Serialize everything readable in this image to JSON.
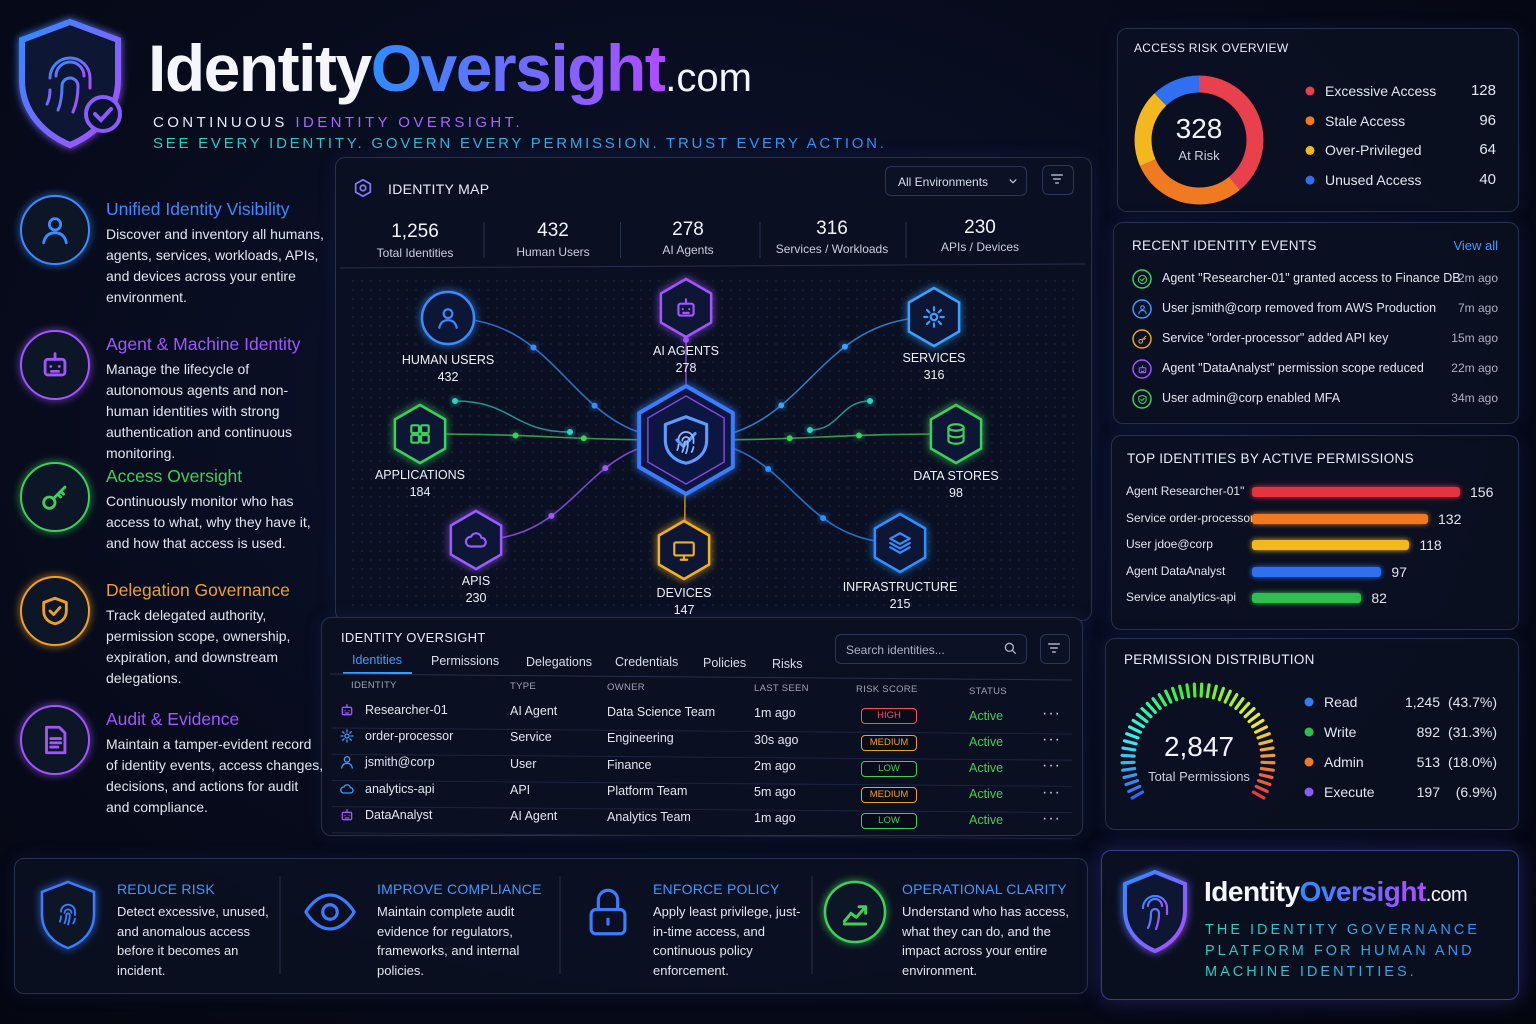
{
  "header": {
    "brand_identity": "Identity",
    "brand_oversight": "Oversight",
    "brand_domain": ".com",
    "tagline_prefix": "CONTINUOUS",
    "tagline_highlight": "IDENTITY OVERSIGHT.",
    "tagline_2": "SEE EVERY IDENTITY. GOVERN EVERY PERMISSION. TRUST EVERY ACTION."
  },
  "features": [
    {
      "title": "Unified Identity Visibility",
      "text": "Discover and inventory all humans, agents, services, workloads, APIs, and devices across your entire environment."
    },
    {
      "title": "Agent & Machine Identity",
      "text": "Manage the lifecycle of autonomous agents and non-human identities with strong authentication and continuous monitoring."
    },
    {
      "title": "Access Oversight",
      "text": "Continuously monitor who has access to what, why they have it, and how that access is used."
    },
    {
      "title": "Delegation Governance",
      "text": "Track delegated authority, permission scope, ownership, expiration, and downstream delegations."
    },
    {
      "title": "Audit & Evidence",
      "text": "Maintain a tamper-evident record of identity events, access changes, decisions, and actions for audit and compliance."
    }
  ],
  "identity_map": {
    "title": "IDENTITY MAP",
    "filter": "All Environments",
    "stats": [
      {
        "value": "1,256",
        "label": "Total Identities"
      },
      {
        "value": "432",
        "label": "Human Users"
      },
      {
        "value": "278",
        "label": "AI Agents"
      },
      {
        "value": "316",
        "label": "Services / Workloads"
      },
      {
        "value": "230",
        "label": "APIs / Devices"
      }
    ],
    "nodes": [
      {
        "label": "HUMAN USERS",
        "count": "432"
      },
      {
        "label": "AI AGENTS",
        "count": "278"
      },
      {
        "label": "SERVICES",
        "count": "316"
      },
      {
        "label": "APPLICATIONS",
        "count": "184"
      },
      {
        "label": "DATA STORES",
        "count": "98"
      },
      {
        "label": "APIS",
        "count": "230"
      },
      {
        "label": "DEVICES",
        "count": "147"
      },
      {
        "label": "INFRASTRUCTURE",
        "count": "215"
      }
    ]
  },
  "identity_table": {
    "title": "IDENTITY OVERSIGHT",
    "tabs": [
      "Identities",
      "Permissions",
      "Delegations",
      "Credentials",
      "Policies",
      "Risks"
    ],
    "search_placeholder": "Search identities...",
    "columns": [
      "IDENTITY",
      "TYPE",
      "OWNER",
      "LAST SEEN",
      "RISK SCORE",
      "STATUS"
    ],
    "rows": [
      [
        "Researcher-01",
        "AI Agent",
        "Data Science Team",
        "1m ago",
        "HIGH",
        "Active"
      ],
      [
        "order-processor",
        "Service",
        "Engineering",
        "30s ago",
        "MEDIUM",
        "Active"
      ],
      [
        "jsmith@corp",
        "User",
        "Finance",
        "2m ago",
        "LOW",
        "Active"
      ],
      [
        "analytics-api",
        "API",
        "Platform Team",
        "5m ago",
        "MEDIUM",
        "Active"
      ],
      [
        "DataAnalyst",
        "AI Agent",
        "Analytics Team",
        "1m ago",
        "LOW",
        "Active"
      ]
    ]
  },
  "access_risk": {
    "title": "ACCESS RISK OVERVIEW",
    "total": "328",
    "total_label": "At Risk",
    "items": [
      {
        "name": "Excessive Access",
        "value": 128,
        "color": "#e8404c"
      },
      {
        "name": "Stale Access",
        "value": 96,
        "color": "#f07a22"
      },
      {
        "name": "Over-Privileged",
        "value": 64,
        "color": "#f2b81e"
      },
      {
        "name": "Unused Access",
        "value": 40,
        "color": "#2f6ff0"
      }
    ]
  },
  "recent_events": {
    "title": "RECENT IDENTITY EVENTS",
    "view_all": "View all",
    "events": [
      {
        "text": "Agent \"Researcher-01\" granted access to Finance DB",
        "time": "2m ago"
      },
      {
        "text": "User jsmith@corp removed from AWS Production",
        "time": "7m ago"
      },
      {
        "text": "Service \"order-processor\" added API key",
        "time": "15m ago"
      },
      {
        "text": "Agent \"DataAnalyst\" permission scope reduced",
        "time": "22m ago"
      },
      {
        "text": "User admin@corp enabled MFA",
        "time": "34m ago"
      }
    ]
  },
  "top_identities": {
    "title": "TOP IDENTITIES BY ACTIVE PERMISSIONS",
    "items": [
      {
        "name": "Agent Researcher-01\"",
        "value": 156,
        "color": "#e5343f"
      },
      {
        "name": "Service order-processor",
        "value": 132,
        "color": "#f07a22"
      },
      {
        "name": "User jdoe@corp",
        "value": 118,
        "color": "#f2b81e"
      },
      {
        "name": "Agent DataAnalyst",
        "value": 97,
        "color": "#2f6ff0"
      },
      {
        "name": "Service analytics-api",
        "value": 82,
        "color": "#2fbf4f"
      }
    ]
  },
  "permission_distribution": {
    "title": "PERMISSION DISTRIBUTION",
    "total": "2,847",
    "total_label": "Total Permissions",
    "items": [
      {
        "name": "Read",
        "count": "1,245",
        "percent": "(43.7%)",
        "color": "#2f7ff0"
      },
      {
        "name": "Write",
        "count": "892",
        "percent": "(31.3%)",
        "color": "#2fbf4f"
      },
      {
        "name": "Admin",
        "count": "513",
        "percent": "(18.0%)",
        "color": "#f07a22"
      },
      {
        "name": "Execute",
        "count": "197",
        "percent": "(6.9%)",
        "color": "#8a5cf0"
      }
    ]
  },
  "benefits": [
    {
      "title": "REDUCE RISK",
      "text": "Detect excessive, unused, and anomalous access before it becomes an incident."
    },
    {
      "title": "IMPROVE COMPLIANCE",
      "text": "Maintain complete audit evidence for regulators, frameworks, and internal policies."
    },
    {
      "title": "ENFORCE POLICY",
      "text": "Apply least privilege, just-in-time access, and continuous policy enforcement."
    },
    {
      "title": "OPERATIONAL CLARITY",
      "text": "Understand who has access, what they can do, and the impact across your entire environment."
    }
  ],
  "footer": {
    "brand_identity": "Identity",
    "brand_oversight": "Oversight",
    "brand_domain": ".com",
    "tagline": "THE IDENTITY GOVERNANCE PLATFORM FOR HUMAN AND MACHINE IDENTITIES."
  }
}
